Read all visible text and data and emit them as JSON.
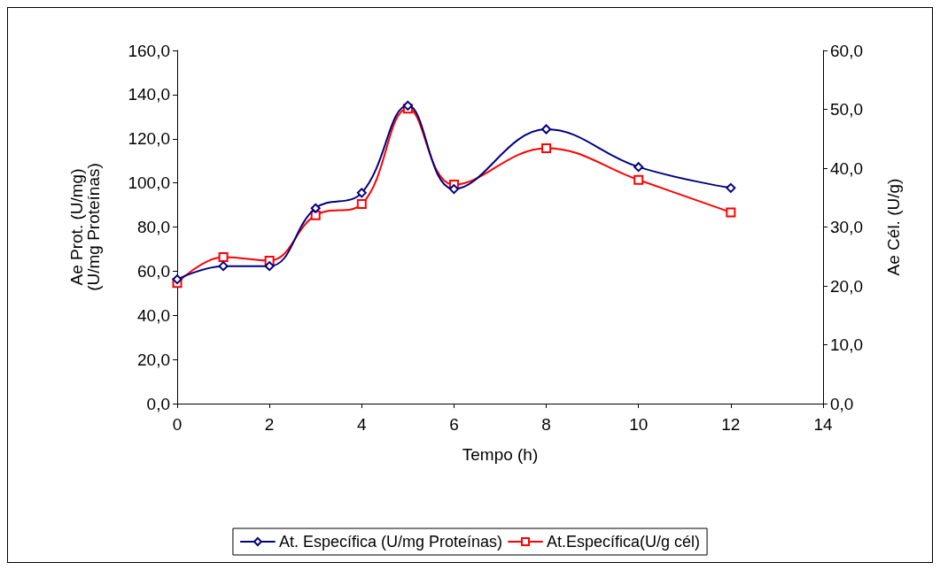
{
  "chart_data": {
    "type": "line",
    "xlabel": "Tempo (h)",
    "ylabel": "Ae Prot. (U/mg)\n(U/mg Proteínas)",
    "y2label": "Ae Cél. (U/g)",
    "x": [
      0,
      1,
      2,
      3,
      4,
      5,
      6,
      8,
      10,
      12
    ],
    "xlim": [
      0,
      14
    ],
    "xticks": [
      0,
      2,
      4,
      6,
      8,
      10,
      12,
      14
    ],
    "ylim": [
      0,
      160
    ],
    "yticks": [
      {
        "value": 0,
        "label": "0,0"
      },
      {
        "value": 20,
        "label": "20,0"
      },
      {
        "value": 40,
        "label": "40,0"
      },
      {
        "value": 60,
        "label": "60,0"
      },
      {
        "value": 80,
        "label": "80,0"
      },
      {
        "value": 100,
        "label": "100,0"
      },
      {
        "value": 120,
        "label": "120,0"
      },
      {
        "value": 140,
        "label": "140,0"
      },
      {
        "value": 160,
        "label": "160,0"
      }
    ],
    "y2lim": [
      0,
      60
    ],
    "y2ticks": [
      {
        "value": 0,
        "label": "0,0"
      },
      {
        "value": 10,
        "label": "10,0"
      },
      {
        "value": 20,
        "label": "20,0"
      },
      {
        "value": 30,
        "label": "30,0"
      },
      {
        "value": 40,
        "label": "40,0"
      },
      {
        "value": 50,
        "label": "50,0"
      },
      {
        "value": 60,
        "label": "60,0"
      }
    ],
    "series": [
      {
        "name": "At. Específica (U/mg Proteínas)",
        "color": "#000080",
        "marker": "diamond",
        "values": [
          56.3,
          62.3,
          62.3,
          88.5,
          95.5,
          135,
          97.2,
          124.3,
          107.2,
          97.7
        ]
      },
      {
        "name": "At.Específica(U/g cél)",
        "color": "#ff0000",
        "marker": "square",
        "axis": "y2",
        "values": [
          20.5,
          24.9,
          24.3,
          32.0,
          33.9,
          50.1,
          37.2,
          43.4,
          38.0,
          32.5
        ]
      }
    ],
    "line_style": "solid",
    "grid": false,
    "legend": "bottom"
  }
}
